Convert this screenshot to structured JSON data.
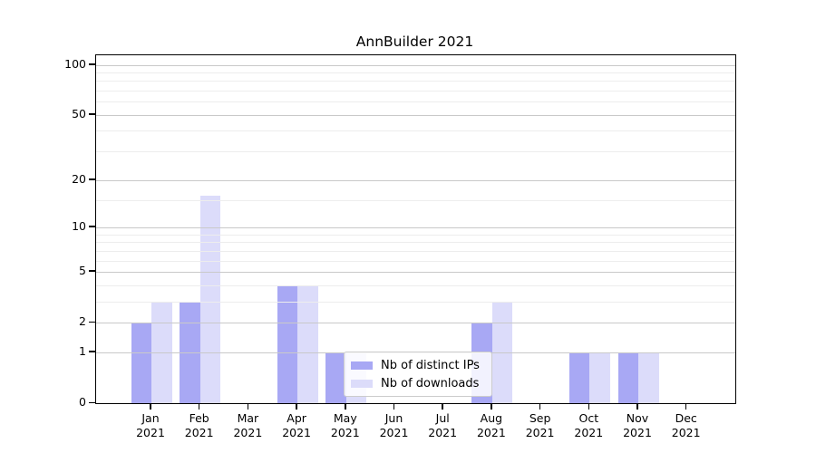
{
  "title": "AnnBuilder 2021",
  "chart_data": {
    "type": "bar",
    "title": "AnnBuilder 2021",
    "categories": [
      "Jan",
      "Feb",
      "Mar",
      "Apr",
      "May",
      "Jun",
      "Jul",
      "Aug",
      "Sep",
      "Oct",
      "Nov",
      "Dec"
    ],
    "category_year": "2021",
    "series": [
      {
        "name": "Nb of distinct IPs",
        "color": "#a8a8f4",
        "values": [
          2,
          3,
          0,
          4,
          1,
          0,
          0,
          2,
          0,
          1,
          1,
          0
        ]
      },
      {
        "name": "Nb of downloads",
        "color": "#dcdcfa",
        "values": [
          3,
          16,
          0,
          4,
          1,
          0,
          0,
          3,
          0,
          1,
          1,
          0
        ]
      }
    ],
    "xlabel": "",
    "ylabel": "",
    "yscale": "log10(1+x)",
    "ylim": [
      0,
      114
    ],
    "yticks": [
      0,
      1,
      2,
      5,
      10,
      20,
      50,
      100
    ],
    "minor_yticks": [
      3,
      4,
      6,
      7,
      8,
      9,
      15,
      30,
      40,
      60,
      70,
      80,
      90
    ],
    "grid": "horizontal",
    "legend_position": "inside-bottom-center",
    "colors": {
      "axis": "#000000",
      "major_grid": "#c9c9c9",
      "minor_grid": "#ededed",
      "background": "#ffffff"
    }
  }
}
